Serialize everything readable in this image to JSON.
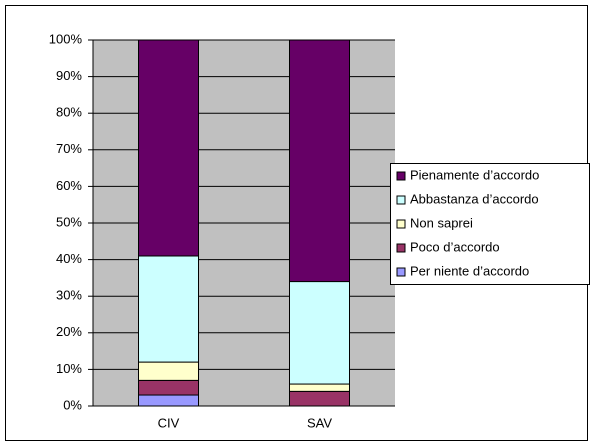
{
  "chart_data": {
    "type": "stacked_bar",
    "categories": [
      "CIV",
      "SAV"
    ],
    "series": [
      {
        "name": "Per niente d’accordo",
        "color": "#9999ff",
        "values": [
          3,
          0
        ]
      },
      {
        "name": "Poco d’accordo",
        "color": "#993366",
        "values": [
          4,
          4
        ]
      },
      {
        "name": "Non saprei",
        "color": "#ffffcc",
        "values": [
          5,
          2
        ]
      },
      {
        "name": "Abbastanza d’accordo",
        "color": "#ccffff",
        "values": [
          29,
          28
        ]
      },
      {
        "name": "Pienamente d’accordo",
        "color": "#660066",
        "values": [
          59,
          66
        ]
      }
    ],
    "ylim": [
      0,
      100
    ],
    "yticks": [
      {
        "value": 0,
        "label": "0%"
      },
      {
        "value": 10,
        "label": "10%"
      },
      {
        "value": 20,
        "label": "20%"
      },
      {
        "value": 30,
        "label": "30%"
      },
      {
        "value": 40,
        "label": "40%"
      },
      {
        "value": 50,
        "label": "50%"
      },
      {
        "value": 60,
        "label": "60%"
      },
      {
        "value": 70,
        "label": "70%"
      },
      {
        "value": 80,
        "label": "80%"
      },
      {
        "value": 90,
        "label": "90%"
      },
      {
        "value": 100,
        "label": "100%"
      }
    ],
    "grid": true,
    "legend": "right"
  }
}
